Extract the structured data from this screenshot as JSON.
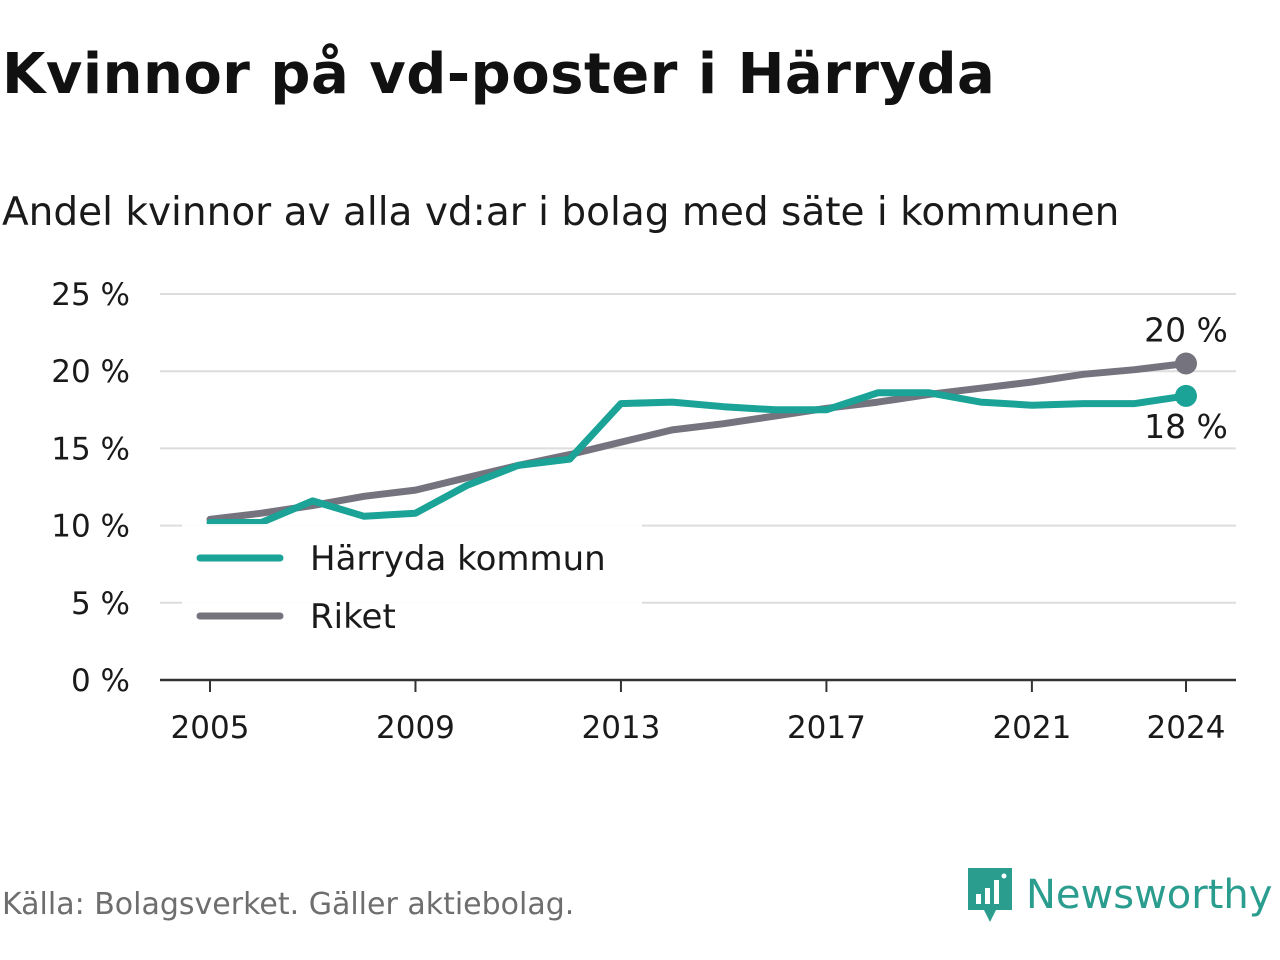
{
  "title": "Kvinnor på vd-poster i Härryda",
  "subtitle": "Andel kvinnor av alla vd:ar i bolag med säte i kommunen",
  "source": "Källa: Bolagsverket. Gäller aktiebolag.",
  "brand": {
    "name": "Newsworthy",
    "icon": "newsworthy-logo-icon",
    "color": "#2a9d8f"
  },
  "chart_data": {
    "type": "line",
    "x": [
      2005,
      2006,
      2007,
      2008,
      2009,
      2010,
      2011,
      2012,
      2013,
      2014,
      2015,
      2016,
      2017,
      2018,
      2019,
      2020,
      2021,
      2022,
      2023,
      2024
    ],
    "x_ticks": [
      "2005",
      "2009",
      "2013",
      "2017",
      "2021",
      "2024"
    ],
    "y_ticks": [
      "0 %",
      "5 %",
      "10 %",
      "15 %",
      "20 %",
      "25 %"
    ],
    "ylim": [
      0,
      25
    ],
    "grid": true,
    "legend_position": "bottom-left",
    "series": [
      {
        "name": "Härryda kommun",
        "color": "#1aa396",
        "values": [
          10.2,
          10.2,
          11.6,
          10.6,
          10.8,
          12.6,
          13.9,
          14.3,
          17.9,
          18.0,
          17.7,
          17.5,
          17.5,
          18.6,
          18.6,
          18.0,
          17.8,
          17.9,
          17.9,
          18.4
        ],
        "end_label": "18 %"
      },
      {
        "name": "Riket",
        "color": "#75737e",
        "values": [
          10.4,
          10.8,
          11.3,
          11.9,
          12.3,
          13.1,
          13.9,
          14.6,
          15.4,
          16.2,
          16.6,
          17.1,
          17.6,
          18.0,
          18.5,
          18.9,
          19.3,
          19.8,
          20.1,
          20.5
        ],
        "end_label": "20 %"
      }
    ]
  }
}
